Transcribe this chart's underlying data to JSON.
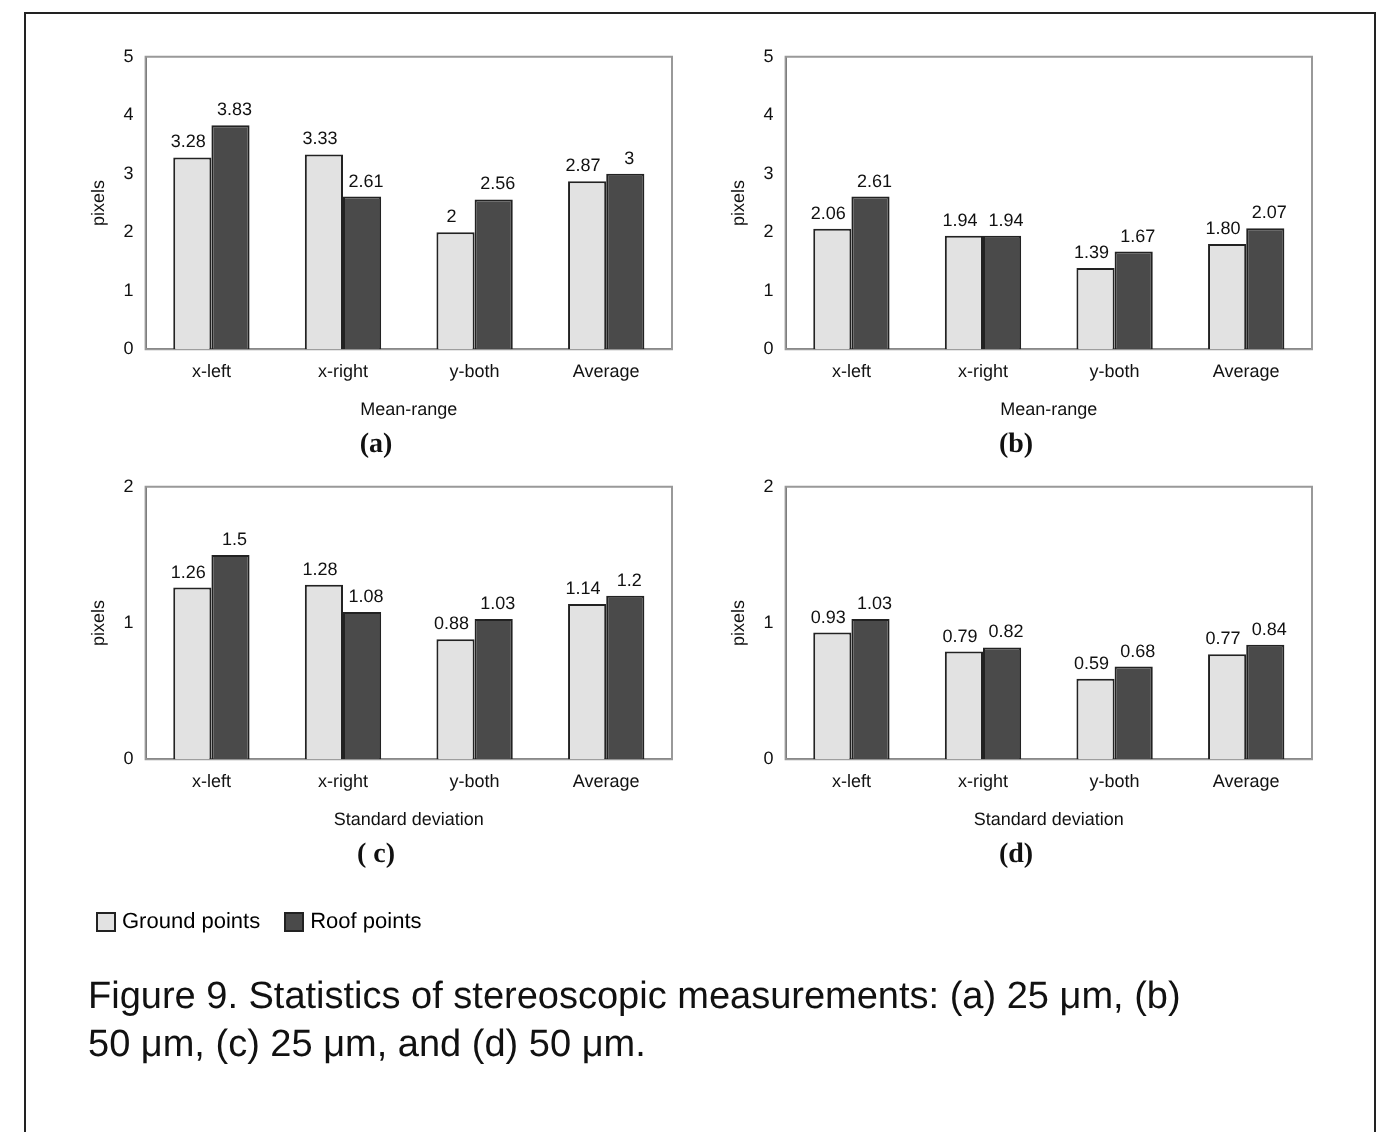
{
  "chart_data": [
    {
      "type": "bar",
      "title": "(a)",
      "xlabel": "Mean-range",
      "ylabel": "pixels",
      "categories": [
        "x-left",
        "x-right",
        "y-both",
        "Average"
      ],
      "ylim": [
        0,
        5
      ],
      "yticks": [
        0,
        1,
        2,
        3,
        4,
        5
      ],
      "legend": "bottom",
      "series": [
        {
          "name": "Ground points",
          "color": "#e2e2e2",
          "values": [
            3.28,
            3.33,
            2,
            2.87
          ],
          "value_labels": [
            "3.28",
            "3.33",
            "2",
            "2.87"
          ]
        },
        {
          "name": "Roof points",
          "color": "#4a4a4a",
          "values": [
            3.83,
            2.61,
            2.56,
            3
          ],
          "value_labels": [
            "3.83",
            "2.61",
            "2.56",
            "3"
          ]
        }
      ]
    },
    {
      "type": "bar",
      "title": "(b)",
      "xlabel": "Mean-range",
      "ylabel": "pixels",
      "categories": [
        "x-left",
        "x-right",
        "y-both",
        "Average"
      ],
      "ylim": [
        0,
        5
      ],
      "yticks": [
        0,
        1,
        2,
        3,
        4,
        5
      ],
      "series": [
        {
          "color": "#e2e2e2",
          "values": [
            2.06,
            1.94,
            1.39,
            1.8
          ],
          "value_labels": [
            "2.06",
            "1.94",
            "1.39",
            "1.80"
          ]
        },
        {
          "color": "#4a4a4a",
          "values": [
            2.61,
            1.94,
            1.67,
            2.07
          ],
          "value_labels": [
            "2.61",
            "1.94",
            "1.67",
            "2.07"
          ]
        }
      ]
    },
    {
      "type": "bar",
      "title": "( c)",
      "xlabel": "Standard deviation",
      "ylabel": "pixels",
      "categories": [
        "x-left",
        "x-right",
        "y-both",
        "Average"
      ],
      "ylim": [
        0,
        2
      ],
      "yticks": [
        0,
        1,
        2
      ],
      "series": [
        {
          "color": "#e2e2e2",
          "values": [
            1.26,
            1.28,
            0.88,
            1.14
          ],
          "value_labels": [
            "1.26",
            "1.28",
            "0.88",
            "1.14"
          ]
        },
        {
          "color": "#4a4a4a",
          "values": [
            1.5,
            1.08,
            1.03,
            1.2
          ],
          "value_labels": [
            "1.5",
            "1.08",
            "1.03",
            "1.2"
          ]
        }
      ],
      "annotations": [
        "Figure 9. Statistics of stereoscopic measurements: (a) 25 μm, (b) 50 μm, (c) 25 μm, and (d) 50 μm."
      ]
    },
    {
      "type": "bar",
      "title": "(d)",
      "xlabel": "Standard deviation",
      "ylabel": "pixels",
      "categories": [
        "x-left",
        "x-right",
        "y-both",
        "Average"
      ],
      "ylim": [
        0,
        2
      ],
      "yticks": [
        0,
        1,
        2
      ],
      "series": [
        {
          "color": "#e2e2e2",
          "values": [
            0.93,
            0.79,
            0.59,
            0.77
          ],
          "value_labels": [
            "0.93",
            "0.79",
            "0.59",
            "0.77"
          ]
        },
        {
          "color": "#4a4a4a",
          "values": [
            1.03,
            0.82,
            0.68,
            0.84
          ],
          "value_labels": [
            "1.03",
            "0.82",
            "0.68",
            "0.84"
          ]
        }
      ]
    }
  ]
}
